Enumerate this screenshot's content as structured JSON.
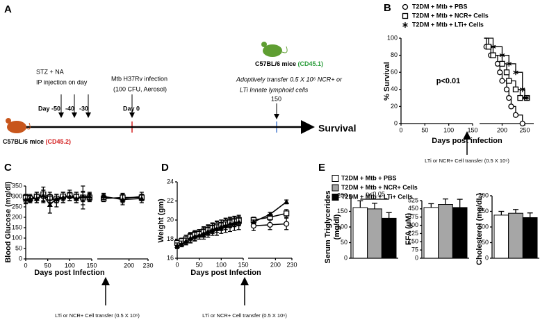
{
  "timeline": {
    "panel": "A",
    "stz": "STZ + NA",
    "ip": "IP injection on day",
    "days": [
      "Day -50",
      "-40",
      "-30"
    ],
    "infection": "Mtb H37Rv infection",
    "infection_dose": "(100 CFU, Aerosol)",
    "day0": "Day 0",
    "recipient": "C57BL/6 mice",
    "recipient_strain": "(CD45.1)",
    "transfer": "Adoptively transfer 0.5 X 10⁶ NCR+ or",
    "transfer2": "LTi  Innate lymphoid cells",
    "day150": "150",
    "donor": "C57BL/6 mice",
    "donor_strain": "(CD45.2)",
    "end": "Survival"
  },
  "chart_data": [
    {
      "type": "survival",
      "panel": "B",
      "ylabel": "% Survival",
      "xlabel": "Days post infection",
      "annotation": "p<0.01",
      "note": "LTi or NCR+ Cell transfer (0.5 X 10⁶)",
      "xlim": [
        0,
        270
      ],
      "xbreak": 150,
      "xticks": [
        0,
        50,
        100,
        150,
        200,
        250
      ],
      "ylim": [
        0,
        100
      ],
      "yticks": [
        0,
        20,
        40,
        60,
        80,
        100
      ],
      "series": [
        {
          "name": "T2DM + Mtb + PBS",
          "marker": "circle",
          "color": "#000000",
          "x": [
            160,
            165,
            175,
            190,
            195,
            200,
            210,
            215,
            220,
            230,
            245
          ],
          "values": [
            100,
            90,
            80,
            70,
            60,
            50,
            40,
            30,
            20,
            10,
            0
          ]
        },
        {
          "name": "T2DM + Mtb + NCR+ Cells",
          "marker": "square",
          "color": "#000000",
          "x": [
            160,
            170,
            180,
            200,
            210,
            215,
            230,
            240,
            255
          ],
          "values": [
            100,
            90,
            80,
            70,
            60,
            50,
            40,
            30,
            30
          ]
        },
        {
          "name": "T2DM + Mtb + LTi+ Cells",
          "marker": "star",
          "color": "#000000",
          "x": [
            160,
            180,
            200,
            215,
            230,
            245,
            250,
            255
          ],
          "values": [
            100,
            90,
            80,
            70,
            60,
            40,
            30,
            30
          ]
        }
      ]
    },
    {
      "type": "line",
      "panel": "C",
      "ylabel": "Blood Glucose (mg/dl)",
      "xlabel": "Days post Infection",
      "note": "LTi or NCR+ Cell transfer (0.5 X 10⁶)",
      "xlim": [
        0,
        230
      ],
      "xbreak": 150,
      "xticks": [
        0,
        50,
        100,
        150,
        200,
        230
      ],
      "ylim": [
        0,
        350
      ],
      "yticks": [
        0,
        50,
        100,
        150,
        200,
        250,
        300,
        350
      ],
      "x": [
        0,
        10,
        25,
        40,
        55,
        70,
        85,
        100,
        115,
        130,
        145,
        150,
        160,
        190,
        220
      ],
      "series": [
        {
          "marker": "circle",
          "color": "#000000",
          "values": [
            290,
            285,
            295,
            300,
            290,
            280,
            295,
            300,
            295,
            290,
            300,
            null,
            295,
            290,
            300
          ],
          "errors": [
            20,
            15,
            25,
            30,
            20,
            30,
            25,
            20,
            25,
            30,
            20,
            null,
            15,
            20,
            20
          ]
        },
        {
          "marker": "square",
          "color": "#000000",
          "values": [
            295,
            290,
            300,
            310,
            295,
            290,
            300,
            305,
            300,
            295,
            295,
            null,
            290,
            295,
            295
          ],
          "errors": [
            15,
            20,
            20,
            35,
            25,
            20,
            20,
            25,
            20,
            55,
            20,
            null,
            15,
            20,
            15
          ]
        },
        {
          "marker": "filled",
          "color": "#000000",
          "values": [
            285,
            290,
            290,
            305,
            260,
            290,
            295,
            300,
            290,
            300,
            300,
            null,
            300,
            285,
            290
          ],
          "errors": [
            20,
            15,
            20,
            25,
            40,
            20,
            25,
            20,
            20,
            25,
            15,
            null,
            15,
            25,
            20
          ]
        }
      ]
    },
    {
      "type": "line",
      "panel": "D",
      "ylabel": "Weight (gm)",
      "xlabel": "Days post Infection",
      "note": "LTi or NCR+ Cell transfer (0.5 X 10⁶)",
      "xlim": [
        0,
        230
      ],
      "xbreak": 150,
      "xticks": [
        0,
        50,
        100,
        150,
        200,
        230
      ],
      "ylim": [
        16,
        24
      ],
      "yticks": [
        16,
        18,
        20,
        22,
        24
      ],
      "x": [
        0,
        10,
        20,
        30,
        40,
        50,
        60,
        70,
        80,
        90,
        100,
        110,
        120,
        130,
        140,
        150,
        160,
        190,
        220
      ],
      "series": [
        {
          "marker": "circle",
          "color": "#000000",
          "values": [
            17.5,
            17.7,
            17.9,
            18.1,
            18.3,
            18.5,
            18.6,
            18.8,
            19.0,
            19.1,
            19.3,
            19.4,
            19.5,
            19.6,
            19.7,
            null,
            19.4,
            19.5,
            19.6
          ],
          "errors": [
            0.4,
            0.4,
            0.5,
            0.5,
            0.5,
            0.5,
            0.6,
            0.6,
            0.6,
            0.7,
            0.7,
            0.7,
            0.7,
            0.7,
            0.7,
            null,
            0.5,
            0.5,
            0.6
          ]
        },
        {
          "marker": "square",
          "color": "#000000",
          "values": [
            17.6,
            17.8,
            18.0,
            18.3,
            18.5,
            18.6,
            18.8,
            19.0,
            19.2,
            19.4,
            19.5,
            19.7,
            19.8,
            19.9,
            20.0,
            null,
            20.0,
            20.3,
            20.7
          ],
          "errors": [
            0.3,
            0.3,
            0.4,
            0.4,
            0.4,
            0.4,
            0.5,
            0.5,
            0.5,
            0.5,
            0.5,
            0.5,
            0.5,
            0.5,
            0.5,
            null,
            0.3,
            0.3,
            0.4
          ]
        },
        {
          "marker": "filled",
          "color": "#000000",
          "values": [
            17.3,
            17.5,
            17.8,
            18.1,
            18.3,
            18.4,
            18.6,
            18.8,
            19.0,
            19.1,
            19.3,
            19.4,
            19.6,
            19.7,
            19.8,
            null,
            19.8,
            20.6,
            21.9
          ],
          "errors": [
            0.3,
            0.3,
            0.3,
            0.4,
            0.4,
            0.4,
            0.4,
            0.4,
            0.4,
            0.4,
            0.4,
            0.4,
            0.4,
            0.4,
            0.4,
            null,
            0.2,
            0.2,
            0.2
          ]
        }
      ]
    },
    {
      "type": "bar",
      "panel": "E",
      "ylabel": [
        "Serum Triglycerides",
        "(mg/dl)"
      ],
      "annotation": "p<0.05",
      "legend": [
        "T2DM + Mtb + PBS",
        "T2DM + Mtb + NCR+ Cells",
        "T2DM + Mtb + LTi+ Cells"
      ],
      "colors": [
        "#ffffff",
        "#a6a6a6",
        "#000000"
      ],
      "ylim": [
        0,
        200
      ],
      "yticks": [
        0,
        50,
        100,
        150,
        200
      ],
      "values": [
        162,
        158,
        128
      ],
      "errors": [
        22,
        18,
        18
      ]
    },
    {
      "type": "bar",
      "ylabel": [
        "FFA (µM)"
      ],
      "colors": [
        "#ffffff",
        "#a6a6a6",
        "#000000"
      ],
      "ylim": [
        0,
        525
      ],
      "yticks": [
        0,
        75,
        150,
        225,
        300,
        375,
        450,
        525
      ],
      "values": [
        462,
        490,
        462
      ],
      "errors": [
        35,
        50,
        75
      ]
    },
    {
      "type": "bar",
      "ylabel": [
        "Cholesterol (mg/dL)"
      ],
      "colors": [
        "#ffffff",
        "#a6a6a6",
        "#000000"
      ],
      "ylim": [
        0,
        200
      ],
      "yticks": [
        0,
        50,
        100,
        150,
        200
      ],
      "values": [
        138,
        144,
        130
      ],
      "errors": [
        12,
        12,
        15
      ]
    }
  ]
}
